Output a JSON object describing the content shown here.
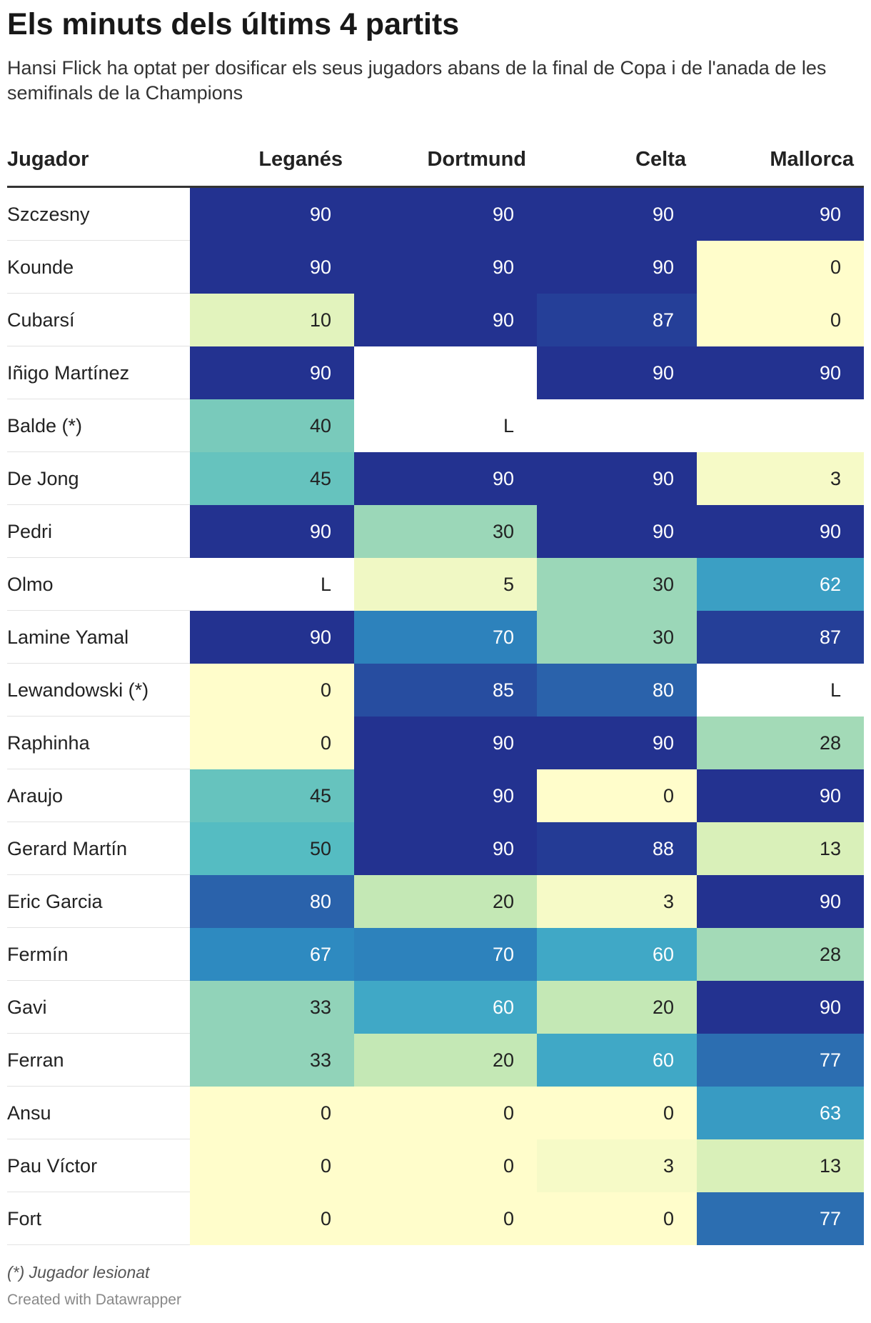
{
  "header": {
    "title": "Els minuts dels últims 4 partits",
    "subtitle": "Hansi Flick ha optat per dosificar els seus jugadors abans de la final de Copa i de l'anada de les semifinals de la Champions"
  },
  "footer": {
    "note": "(*) Jugador lesionat",
    "credit": "Created with Datawrapper"
  },
  "chart_data": {
    "type": "table",
    "columns": [
      "Jugador",
      "Leganés",
      "Dortmund",
      "Celta",
      "Mallorca"
    ],
    "value_range": [
      0,
      90
    ],
    "rows": [
      {
        "player": "Szczesny",
        "values": [
          "90",
          "90",
          "90",
          "90"
        ]
      },
      {
        "player": "Kounde",
        "values": [
          "90",
          "90",
          "90",
          "0"
        ]
      },
      {
        "player": "Cubarsí",
        "values": [
          "10",
          "90",
          "87",
          "0"
        ]
      },
      {
        "player": "Iñigo Martínez",
        "values": [
          "90",
          "",
          "90",
          "90"
        ]
      },
      {
        "player": "Balde (*)",
        "values": [
          "40",
          "L",
          "",
          ""
        ]
      },
      {
        "player": "De Jong",
        "values": [
          "45",
          "90",
          "90",
          "3"
        ]
      },
      {
        "player": "Pedri",
        "values": [
          "90",
          "30",
          "90",
          "90"
        ]
      },
      {
        "player": "Olmo",
        "values": [
          "L",
          "5",
          "30",
          "62"
        ]
      },
      {
        "player": "Lamine Yamal",
        "values": [
          "90",
          "70",
          "30",
          "87"
        ]
      },
      {
        "player": "Lewandowski (*)",
        "values": [
          "0",
          "85",
          "80",
          "L"
        ]
      },
      {
        "player": "Raphinha",
        "values": [
          "0",
          "90",
          "90",
          "28"
        ]
      },
      {
        "player": "Araujo",
        "values": [
          "45",
          "90",
          "0",
          "90"
        ]
      },
      {
        "player": "Gerard Martín",
        "values": [
          "50",
          "90",
          "88",
          "13"
        ]
      },
      {
        "player": "Eric Garcia",
        "values": [
          "80",
          "20",
          "3",
          "90"
        ]
      },
      {
        "player": "Fermín",
        "values": [
          "67",
          "70",
          "60",
          "28"
        ]
      },
      {
        "player": "Gavi",
        "values": [
          "33",
          "60",
          "20",
          "90"
        ]
      },
      {
        "player": "Ferran",
        "values": [
          "33",
          "20",
          "60",
          "77"
        ]
      },
      {
        "player": "Ansu",
        "values": [
          "0",
          "0",
          "0",
          "63"
        ]
      },
      {
        "player": "Pau Víctor",
        "values": [
          "0",
          "0",
          "3",
          "13"
        ]
      },
      {
        "player": "Fort",
        "values": [
          "0",
          "0",
          "0",
          "77"
        ]
      }
    ]
  }
}
